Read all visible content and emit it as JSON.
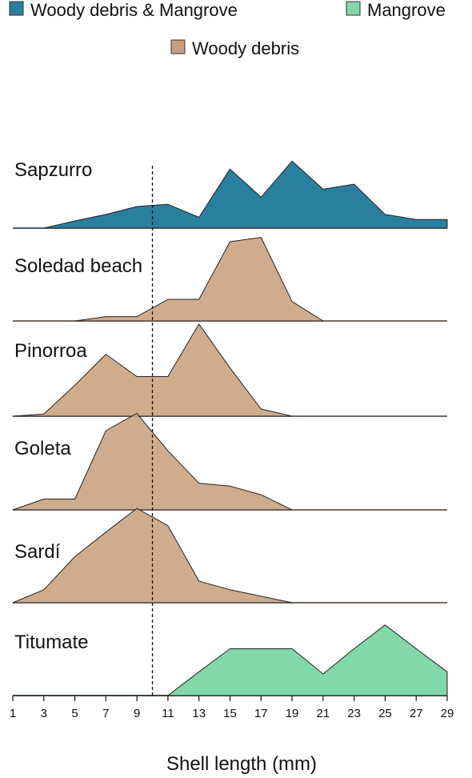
{
  "chart_data": {
    "type": "area",
    "layout": "ridgeline",
    "xlabel": "Shell length (mm)",
    "xlim": [
      1,
      29
    ],
    "x_ticks": [
      1,
      3,
      5,
      7,
      9,
      11,
      13,
      15,
      17,
      19,
      21,
      23,
      25,
      27,
      29
    ],
    "reference_line_x": 10,
    "habitats": [
      {
        "key": "both",
        "name": "Woody debris & Mangrove",
        "color": "#2b7f9e"
      },
      {
        "key": "mangrove",
        "name": "Mangrove",
        "color": "#82d8a8"
      },
      {
        "key": "woody",
        "name": "Woody debris",
        "color": "#c9a080"
      }
    ],
    "ridge_scale_max": 1.0,
    "series": [
      {
        "name": "Sapzurro",
        "habitat": "both",
        "x": [
          3,
          5,
          7,
          9,
          11,
          13,
          15,
          17,
          19,
          21,
          23,
          25,
          27,
          29
        ],
        "values": [
          0,
          0.1,
          0.19,
          0.3,
          0.33,
          0.15,
          0.82,
          0.43,
          0.93,
          0.54,
          0.61,
          0.19,
          0.12,
          0.12
        ]
      },
      {
        "name": "Soledad beach",
        "habitat": "woody",
        "x": [
          5,
          7,
          9,
          11,
          13,
          15,
          17,
          19,
          21
        ],
        "values": [
          0,
          0.06,
          0.06,
          0.3,
          0.3,
          1.1,
          1.16,
          0.27,
          0
        ]
      },
      {
        "name": "Pinorroa",
        "habitat": "woody",
        "x": [
          1,
          3,
          5,
          7,
          9,
          11,
          13,
          15,
          17,
          19
        ],
        "values": [
          0,
          0.03,
          0.43,
          0.86,
          0.55,
          0.55,
          1.28,
          0.67,
          0.1,
          0
        ]
      },
      {
        "name": "Goleta",
        "habitat": "woody",
        "x": [
          1,
          3,
          5,
          7,
          9,
          11,
          13,
          15,
          17,
          19
        ],
        "values": [
          0,
          0.15,
          0.15,
          1.1,
          1.34,
          0.82,
          0.37,
          0.33,
          0.21,
          0
        ]
      },
      {
        "name": "Sardí",
        "habitat": "woody",
        "x": [
          1,
          3,
          5,
          7,
          9,
          11,
          13,
          15,
          17,
          19
        ],
        "values": [
          0,
          0.18,
          0.64,
          0.98,
          1.31,
          1.07,
          0.3,
          0.18,
          0.09,
          0
        ]
      },
      {
        "name": "Titumate",
        "habitat": "mangrove",
        "x": [
          11,
          13,
          15,
          17,
          19,
          21,
          23,
          25,
          27,
          29
        ],
        "values": [
          0,
          0.33,
          0.65,
          0.65,
          0.65,
          0.3,
          0.65,
          0.98,
          0.65,
          0.33
        ]
      }
    ],
    "legend": {
      "placement": "top"
    }
  }
}
